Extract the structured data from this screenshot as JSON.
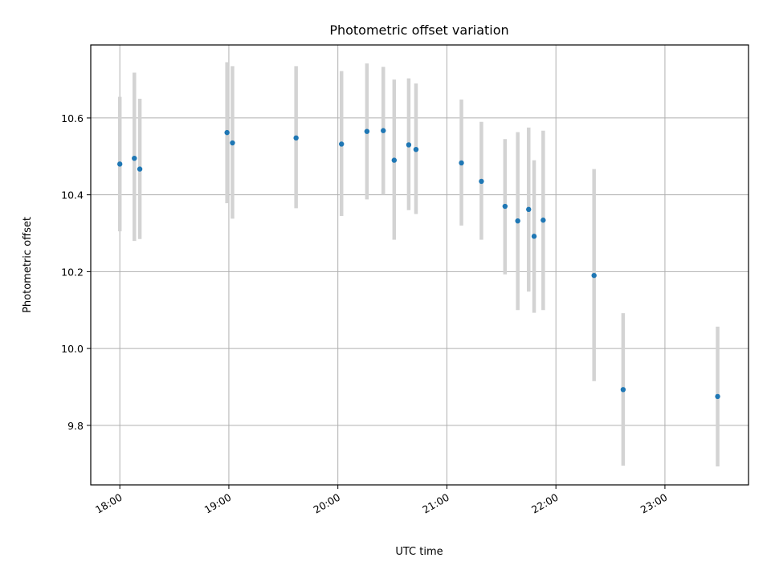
{
  "chart_data": {
    "type": "scatter",
    "title": "Photometric offset variation",
    "xlabel": "UTC time",
    "ylabel": "Photometric offset",
    "x_unit": "UTC",
    "xlim": [
      "17:44",
      "23:46"
    ],
    "ylim": [
      9.645,
      10.79
    ],
    "xticks": [
      "18:00",
      "19:00",
      "20:00",
      "21:00",
      "22:00",
      "23:00"
    ],
    "yticks": [
      9.8,
      10.0,
      10.2,
      10.4,
      10.6
    ],
    "grid": true,
    "colors": {
      "point": "#1f77b4",
      "errorbar": "#d3d3d3",
      "grid": "#b0b0b0"
    },
    "series": [
      {
        "points": [
          {
            "x": "18:00",
            "y": 10.48,
            "err": [
              10.305,
              10.655
            ]
          },
          {
            "x": "18:08",
            "y": 10.495,
            "err": [
              10.28,
              10.718
            ]
          },
          {
            "x": "18:11",
            "y": 10.467,
            "err": [
              10.285,
              10.65
            ]
          },
          {
            "x": "18:59",
            "y": 10.562,
            "err": [
              10.378,
              10.745
            ]
          },
          {
            "x": "19:02",
            "y": 10.535,
            "err": [
              10.338,
              10.735
            ]
          },
          {
            "x": "19:37",
            "y": 10.548,
            "err": [
              10.365,
              10.735
            ]
          },
          {
            "x": "20:02",
            "y": 10.532,
            "err": [
              10.345,
              10.722
            ]
          },
          {
            "x": "20:16",
            "y": 10.565,
            "err": [
              10.388,
              10.742
            ]
          },
          {
            "x": "20:25",
            "y": 10.567,
            "err": [
              10.4,
              10.733
            ]
          },
          {
            "x": "20:31",
            "y": 10.49,
            "err": [
              10.283,
              10.7
            ]
          },
          {
            "x": "20:39",
            "y": 10.53,
            "err": [
              10.36,
              10.703
            ]
          },
          {
            "x": "20:43",
            "y": 10.518,
            "err": [
              10.35,
              10.69
            ]
          },
          {
            "x": "21:08",
            "y": 10.483,
            "err": [
              10.32,
              10.648
            ]
          },
          {
            "x": "21:19",
            "y": 10.435,
            "err": [
              10.283,
              10.59
            ]
          },
          {
            "x": "21:32",
            "y": 10.37,
            "err": [
              10.193,
              10.545
            ]
          },
          {
            "x": "21:39",
            "y": 10.332,
            "err": [
              10.1,
              10.563
            ]
          },
          {
            "x": "21:45",
            "y": 10.362,
            "err": [
              10.148,
              10.575
            ]
          },
          {
            "x": "21:48",
            "y": 10.292,
            "err": [
              10.093,
              10.49
            ]
          },
          {
            "x": "21:53",
            "y": 10.334,
            "err": [
              10.1,
              10.567
            ]
          },
          {
            "x": "22:21",
            "y": 10.19,
            "err": [
              9.915,
              10.467
            ]
          },
          {
            "x": "22:37",
            "y": 9.893,
            "err": [
              9.695,
              10.092
            ]
          },
          {
            "x": "23:29",
            "y": 9.875,
            "err": [
              9.693,
              10.057
            ]
          }
        ]
      }
    ]
  }
}
